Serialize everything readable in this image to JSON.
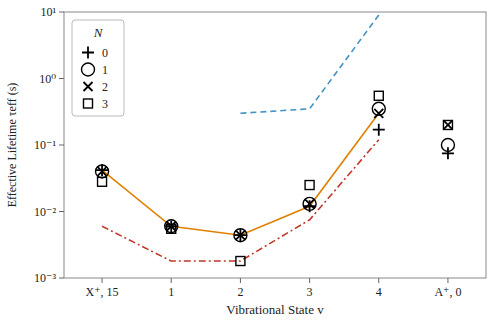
{
  "chart_data": {
    "type": "scatter",
    "x_label": "Vibrational State v",
    "y_label": "Effective Lifetime τeff (s)",
    "legend_title": "N",
    "legend": "upper left",
    "log": "y",
    "grid": false,
    "xlim": [
      -0.55,
      5.55
    ],
    "xticks": [
      {
        "value": 0,
        "label": "X⁺, 15"
      },
      1,
      2,
      3,
      4,
      {
        "value": 5,
        "label": "A⁺, 0"
      }
    ],
    "ylim": [
      0.001,
      10
    ],
    "yticks": [
      {
        "value": 0.001,
        "label": "10⁻³"
      },
      {
        "value": 0.01,
        "label": "10⁻²"
      },
      {
        "value": 0.1,
        "label": "10⁻¹"
      },
      {
        "value": 1,
        "label": "10⁰"
      },
      {
        "value": 10,
        "label": "10¹"
      }
    ],
    "series": [
      {
        "name": "0",
        "type": "scatter",
        "marker": "plus",
        "color": "black",
        "x": [
          0,
          1,
          2,
          3,
          4,
          5
        ],
        "values": [
          0.042,
          0.006,
          0.0044,
          0.012,
          0.17,
          0.075
        ]
      },
      {
        "name": "1",
        "type": "scatter",
        "marker": "circle",
        "color": "black",
        "x": [
          0,
          1,
          2,
          3,
          4,
          5
        ],
        "values": [
          0.04,
          0.006,
          0.0044,
          0.013,
          0.35,
          0.1
        ]
      },
      {
        "name": "2",
        "type": "scatter",
        "marker": "x",
        "color": "black",
        "x": [
          0,
          1,
          2,
          3,
          4,
          5
        ],
        "values": [
          0.04,
          0.006,
          0.0044,
          0.013,
          0.3,
          0.2
        ]
      },
      {
        "name": "3",
        "type": "scatter",
        "marker": "square",
        "color": "black",
        "x": [
          0,
          1,
          2,
          3,
          4,
          5
        ],
        "values": [
          0.028,
          0.0055,
          0.0018,
          0.025,
          0.55,
          0.2
        ]
      },
      {
        "type": "line",
        "line_style": "dashed",
        "color": "#4393c3",
        "x": [
          2,
          3,
          4
        ],
        "values": [
          0.3,
          0.35,
          9.0
        ]
      },
      {
        "type": "line",
        "line_style": "solid",
        "color": "#e08000",
        "x": [
          0,
          1,
          2,
          3,
          4
        ],
        "values": [
          0.042,
          0.006,
          0.0044,
          0.012,
          0.3
        ]
      },
      {
        "type": "line",
        "line_style": "dashdot",
        "color": "#c0392b",
        "x": [
          0,
          1,
          2,
          3,
          4
        ],
        "values": [
          0.006,
          0.0018,
          0.0018,
          0.0075,
          0.12
        ]
      }
    ]
  }
}
